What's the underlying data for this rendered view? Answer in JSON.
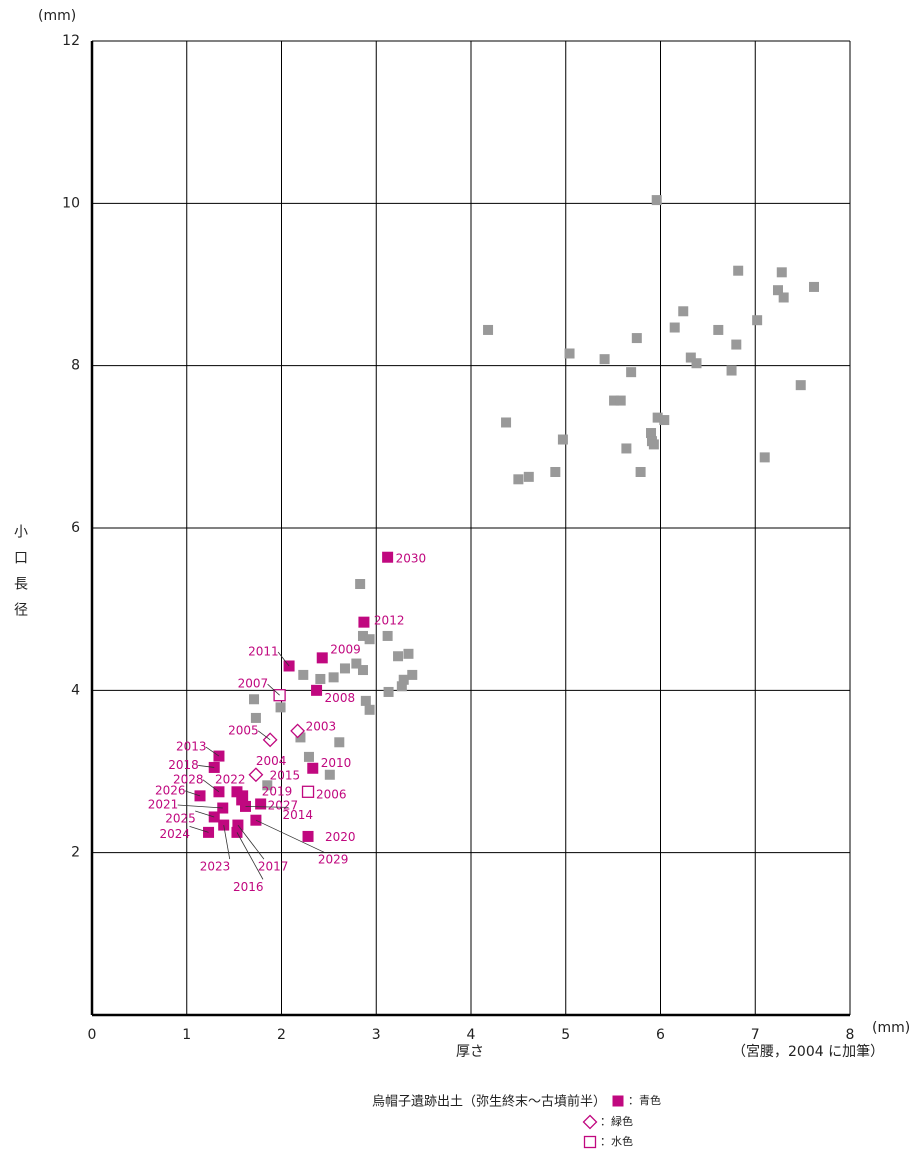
{
  "chart_data": {
    "type": "scatter",
    "y_unit": "(mm)",
    "x_unit": "(mm)",
    "x_label": "厚さ",
    "y_label": "小口長径",
    "note": "（宮腰，2004 に加筆）",
    "legend_title": "烏帽子遺跡出土（弥生終末～古墳前半）",
    "xlim": [
      0,
      8
    ],
    "xticks": [
      0,
      1,
      2,
      3,
      4,
      5,
      6,
      7,
      8
    ],
    "ylim": [
      0,
      12
    ],
    "yticks": [
      2,
      4,
      6,
      8,
      10,
      12
    ],
    "grid": true,
    "series": [
      {
        "color": "#999999",
        "marker": "square",
        "x": [
          5.96,
          6.82,
          7.28,
          7.62,
          7.24,
          7.3,
          6.24,
          7.02,
          6.15,
          6.61,
          4.18,
          5.75,
          6.8,
          5.04,
          6.32,
          6.38,
          5.41,
          5.69,
          6.75,
          7.48,
          5.51,
          5.58,
          5.97,
          6.04,
          4.37,
          5.9,
          4.97,
          5.91,
          5.93,
          5.64,
          7.1,
          5.79,
          4.89,
          4.61,
          4.5,
          2.83,
          2.86,
          2.93,
          3.12,
          3.23,
          3.34,
          2.79,
          2.67,
          2.86,
          2.23,
          2.55,
          2.41,
          3.38,
          3.29,
          3.27,
          3.13,
          1.71,
          2.89,
          1.99,
          2.93,
          1.73,
          2.61,
          2.2,
          2.29,
          2.51,
          1.85
        ],
        "y": [
          10.04,
          9.17,
          9.15,
          8.97,
          8.93,
          8.84,
          8.67,
          8.56,
          8.47,
          8.44,
          8.44,
          8.34,
          8.26,
          8.15,
          8.1,
          8.03,
          8.08,
          7.92,
          7.94,
          7.76,
          7.57,
          7.57,
          7.36,
          7.33,
          7.3,
          7.17,
          7.09,
          7.07,
          7.03,
          6.98,
          6.87,
          6.69,
          6.69,
          6.63,
          6.6,
          5.31,
          4.67,
          4.63,
          4.67,
          4.42,
          4.45,
          4.33,
          4.27,
          4.25,
          4.19,
          4.16,
          4.14,
          4.19,
          4.13,
          4.05,
          3.98,
          3.89,
          3.87,
          3.79,
          3.76,
          3.66,
          3.36,
          3.42,
          3.18,
          2.96,
          2.83
        ]
      },
      {
        "name": "：青色",
        "color": "#c0087f",
        "marker": "square",
        "labels": [
          "2030",
          "2012",
          "2011",
          "2009",
          "2008",
          "2013",
          "2018",
          "2010",
          "2028",
          "2026",
          "2022",
          "2021",
          "2027",
          "2019",
          "2014",
          "2015",
          "2025",
          "2024",
          "2023",
          "2016",
          "2017",
          "2029",
          "2020"
        ],
        "x": [
          3.12,
          2.87,
          2.08,
          2.43,
          2.37,
          1.34,
          1.29,
          2.33,
          1.34,
          1.14,
          1.53,
          1.38,
          1.78,
          1.58,
          1.62,
          1.59,
          1.29,
          1.23,
          1.39,
          1.53,
          1.54,
          1.73,
          2.28
        ],
        "y": [
          5.64,
          4.84,
          4.3,
          4.4,
          4.0,
          3.19,
          3.05,
          3.04,
          2.75,
          2.7,
          2.75,
          2.55,
          2.6,
          2.65,
          2.57,
          2.7,
          2.44,
          2.25,
          2.34,
          2.25,
          2.34,
          2.4,
          2.2
        ]
      },
      {
        "name": "：緑色",
        "color": "#c0087f",
        "marker": "open-diamond",
        "labels": [
          "2003",
          "2005",
          "2004"
        ],
        "x": [
          2.17,
          1.88,
          1.73
        ],
        "y": [
          3.5,
          3.39,
          2.96
        ]
      },
      {
        "name": "：水色",
        "color": "#c0087f",
        "marker": "open-square",
        "labels": [
          "2007",
          "2006"
        ],
        "x": [
          1.98,
          2.28
        ],
        "y": [
          3.94,
          2.75
        ]
      }
    ]
  }
}
